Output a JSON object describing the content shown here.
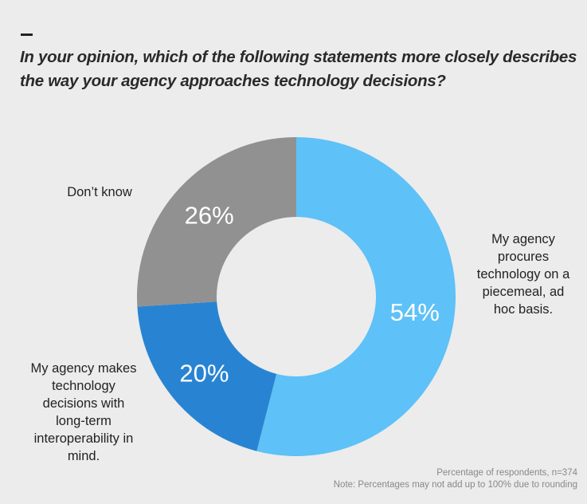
{
  "chart_data": {
    "type": "pie",
    "subtype": "donut",
    "title": "In your opinion, which of the following statements more closely describes the way your agency approaches technology decisions?",
    "slices": [
      {
        "label": "My agency procures technology on a piecemeal, ad hoc basis.",
        "label_lines": [
          "My agency",
          "procures",
          "technology on a",
          "piecemeal, ad",
          "hoc basis."
        ],
        "value": 54,
        "value_label": "54%",
        "color": "#5ec1f7"
      },
      {
        "label": "My agency makes technology decisions with long-term interoperability in mind.",
        "label_lines": [
          "My agency makes",
          "technology",
          "decisions with",
          "long-term",
          "interoperability in",
          "mind."
        ],
        "value": 20,
        "value_label": "20%",
        "color": "#2884d2"
      },
      {
        "label": "Don't know",
        "label_lines": [
          "Don’t know"
        ],
        "value": 26,
        "value_label": "26%",
        "color": "#919191"
      }
    ],
    "notes": [
      "Percentage of respondents, n=374",
      "Note: Percentages may not add up to 100% due to rounding"
    ]
  }
}
